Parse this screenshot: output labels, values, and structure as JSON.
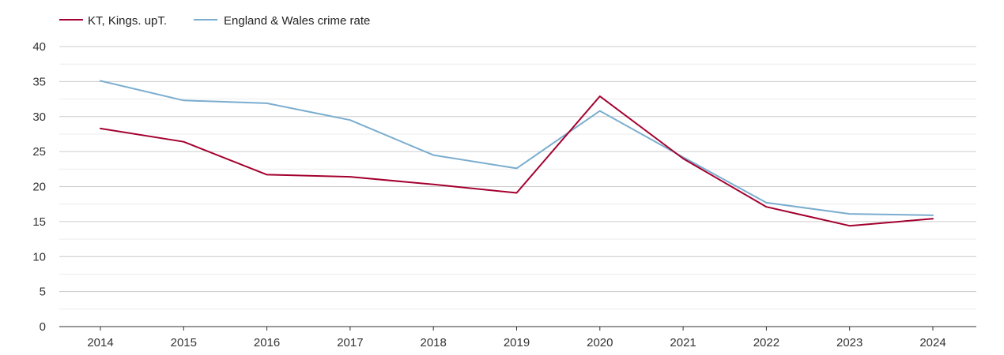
{
  "chart_data": {
    "type": "line",
    "x": [
      "2014",
      "2015",
      "2016",
      "2017",
      "2018",
      "2019",
      "2020",
      "2021",
      "2022",
      "2023",
      "2024"
    ],
    "series": [
      {
        "name": "KT, Kings. upT.",
        "color": "#a3002e",
        "values": [
          28.3,
          26.4,
          21.7,
          21.4,
          20.3,
          19.1,
          32.9,
          24.0,
          17.1,
          14.4,
          15.4
        ]
      },
      {
        "name": "England & Wales crime rate",
        "color": "#7aadcf",
        "values": [
          35.1,
          32.3,
          31.9,
          29.5,
          24.5,
          22.6,
          30.8,
          24.2,
          17.7,
          16.1,
          15.9
        ]
      }
    ],
    "y_ticks": [
      "0",
      "5",
      "10",
      "15",
      "20",
      "25",
      "30",
      "35",
      "40"
    ],
    "ylim": [
      0,
      40
    ],
    "grid": true,
    "legend_position": "top-left"
  }
}
